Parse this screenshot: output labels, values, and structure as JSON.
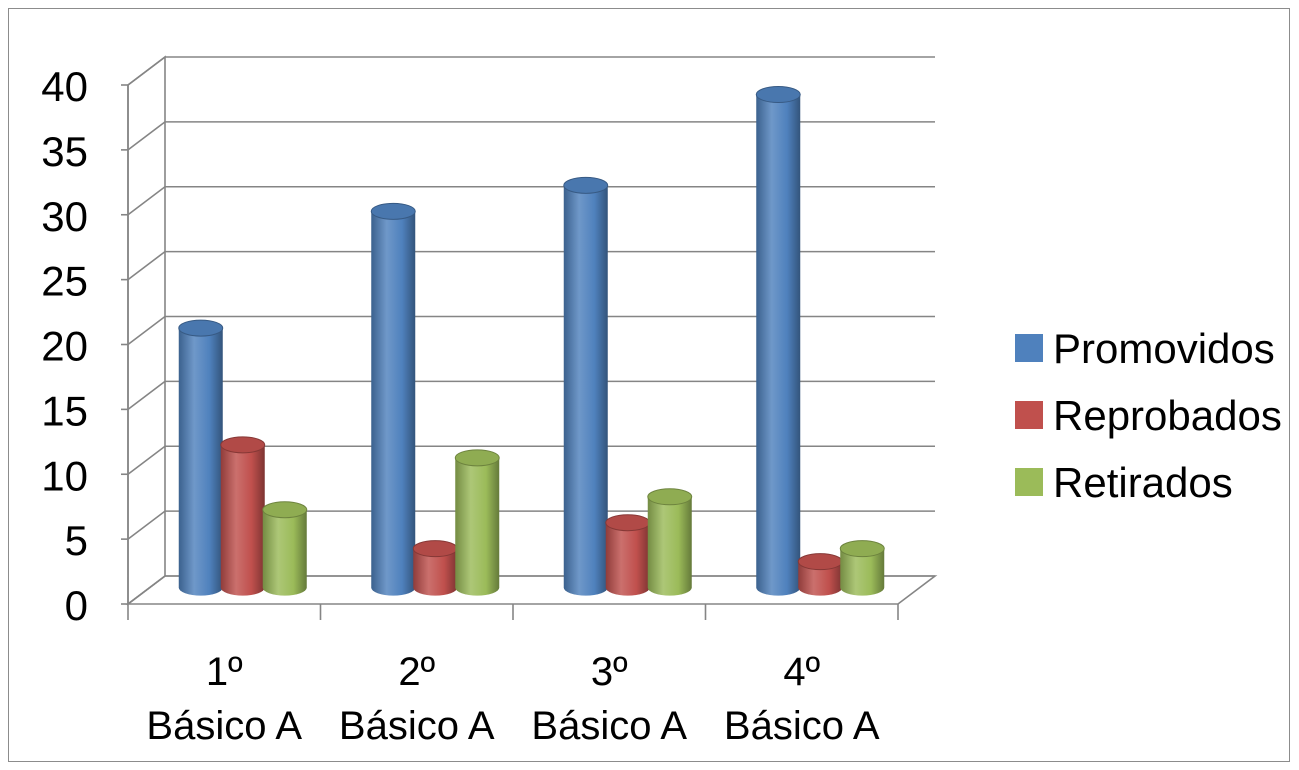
{
  "chart_data": {
    "type": "bar",
    "style": "3d-cylinder-clustered",
    "categories": [
      [
        "1º",
        "Básico A"
      ],
      [
        "2º",
        "Básico A"
      ],
      [
        "3º",
        "Básico A"
      ],
      [
        "4º",
        "Básico A"
      ]
    ],
    "series": [
      {
        "name": "Promovidos",
        "color": "#4f81bd",
        "values": [
          20,
          29,
          31,
          38
        ]
      },
      {
        "name": "Reprobados",
        "color": "#c0504d",
        "values": [
          11,
          3,
          5,
          2
        ]
      },
      {
        "name": "Retirados",
        "color": "#9bbb59",
        "values": [
          6,
          10,
          7,
          3
        ]
      }
    ],
    "ylim": [
      0,
      40
    ],
    "yticks": [
      0,
      5,
      10,
      15,
      20,
      25,
      30,
      35,
      40
    ],
    "grid": true,
    "legend_position": "right"
  }
}
